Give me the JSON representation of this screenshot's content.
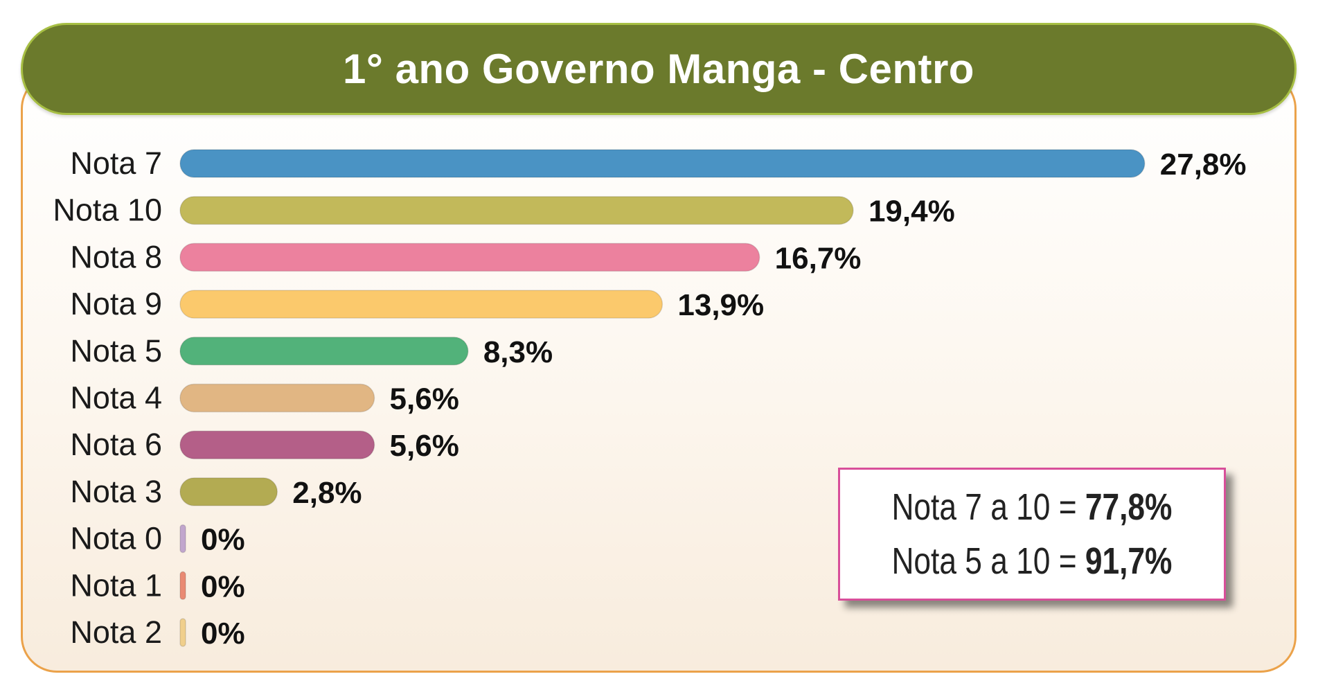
{
  "title": "1° ano Governo Manga - Centro",
  "chart_data": {
    "type": "bar",
    "orientation": "horizontal",
    "title": "1° ano Governo Manga - Centro",
    "categories": [
      "Nota 7",
      "Nota 10",
      "Nota 8",
      "Nota 9",
      "Nota 5",
      "Nota 4",
      "Nota 6",
      "Nota 3",
      "Nota 0",
      "Nota 1",
      "Nota 2"
    ],
    "values": [
      27.8,
      19.4,
      16.7,
      13.9,
      8.3,
      5.6,
      5.6,
      2.8,
      0,
      0,
      0
    ],
    "labels": [
      "27,8%",
      "19,4%",
      "16,7%",
      "13,9%",
      "8,3%",
      "5,6%",
      "5,6%",
      "2,8%",
      "0%",
      "0%",
      "0%"
    ],
    "colors": [
      "#4a93c4",
      "#c2b95a",
      "#ec819e",
      "#fbc96c",
      "#52b27a",
      "#e1b683",
      "#b45f88",
      "#b3ab52",
      "#c1a6cd",
      "#e98a73",
      "#f0cf8c"
    ],
    "grid": false,
    "legend": "none"
  },
  "summary": {
    "line1_label": "Nota 7 a 10 = ",
    "line1_value": "77,8%",
    "line2_label": "Nota 5 a 10 = ",
    "line2_value": "91,7%"
  }
}
